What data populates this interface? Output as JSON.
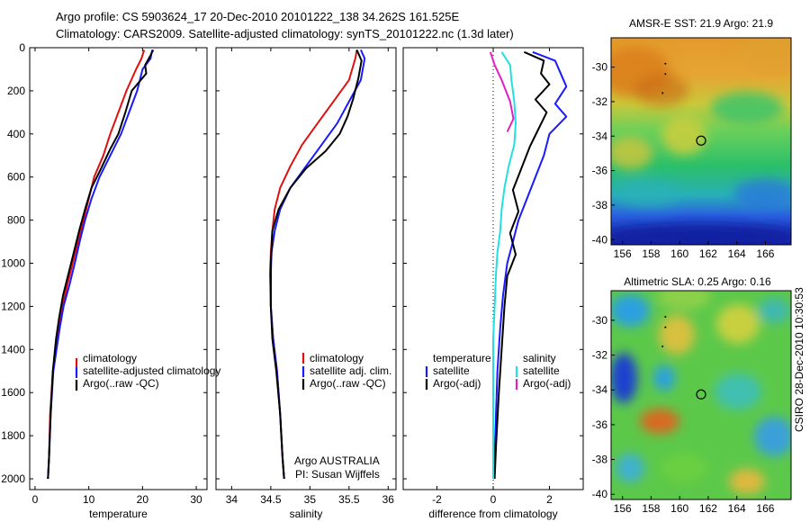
{
  "header": {
    "line1": "Argo profile: CS 5903624_17 20-Dec-2010 20101222_138 34.262S 161.525E",
    "line2": "Climatology: CARS2009. Satellite-adjusted climatology: synTS_20101222.nc (1.3d later)"
  },
  "side_label": "CSIRO 28-Dec-2010 10:30:53",
  "colors": {
    "climatology": "#e01010",
    "satellite": "#1a1aff",
    "argo": "#000000",
    "salinity_sat": "#22e0e0",
    "salinity_argo": "#e020c0"
  },
  "chart_data": [
    {
      "type": "line",
      "id": "temperature",
      "xlabel": "temperature",
      "xlim": [
        -1,
        32
      ],
      "ylim": [
        2050,
        0
      ],
      "xticks": [
        0,
        10,
        20,
        30
      ],
      "yticks": [
        0,
        200,
        400,
        600,
        800,
        1000,
        1200,
        1400,
        1600,
        1800,
        2000
      ],
      "legend": [
        "climatology",
        "satellite-adjusted climatology",
        "Argo(..raw -QC)"
      ],
      "series": [
        {
          "name": "climatology",
          "color": "#e01010",
          "x": [
            20.3,
            19.8,
            18.8,
            17.0,
            15.5,
            14.0,
            12.7,
            11.0,
            10.0,
            9.0,
            8.0,
            7.0,
            6.0,
            5.1,
            4.4,
            3.9,
            3.3,
            2.8,
            2.6,
            2.4
          ],
          "y": [
            10,
            50,
            100,
            200,
            300,
            400,
            500,
            600,
            700,
            800,
            900,
            1000,
            1100,
            1200,
            1300,
            1400,
            1500,
            1700,
            1900,
            2000
          ]
        },
        {
          "name": "satellite-adjusted climatology",
          "color": "#1a1aff",
          "x": [
            21.8,
            21.5,
            20.0,
            19.0,
            17.5,
            16.0,
            14.0,
            12.0,
            10.5,
            9.3,
            8.3,
            7.4,
            6.4,
            5.3,
            4.6,
            4.0,
            3.4,
            2.9,
            2.6,
            2.4
          ],
          "y": [
            10,
            50,
            100,
            200,
            300,
            400,
            500,
            600,
            700,
            800,
            900,
            1000,
            1100,
            1200,
            1300,
            1400,
            1500,
            1700,
            1900,
            2000
          ]
        },
        {
          "name": "Argo(..raw -QC)",
          "color": "#000000",
          "x": [
            22.0,
            21.4,
            20.5,
            20.7,
            18.0,
            16.8,
            15.5,
            14.0,
            12.3,
            10.5,
            9.3,
            8.2,
            7.2,
            6.2,
            5.2,
            4.5,
            3.9,
            3.3,
            2.9,
            2.6,
            2.4
          ],
          "y": [
            10,
            40,
            80,
            120,
            200,
            300,
            400,
            470,
            560,
            650,
            750,
            850,
            950,
            1050,
            1150,
            1250,
            1350,
            1500,
            1700,
            1900,
            2000
          ]
        }
      ]
    },
    {
      "type": "line",
      "id": "salinity",
      "xlabel": "salinity",
      "xlim": [
        33.8,
        36.1
      ],
      "ylim": [
        2050,
        0
      ],
      "xticks": [
        34,
        34.5,
        35,
        35.5,
        36
      ],
      "yticks": [],
      "legend": [
        "climatology",
        "satellite adj. clim.",
        "Argo(..raw -QC)"
      ],
      "note_lines": [
        "Argo AUSTRALIA",
        "PI: Susan Wijffels"
      ],
      "series": [
        {
          "name": "climatology",
          "color": "#e01010",
          "x": [
            35.6,
            35.58,
            35.5,
            35.3,
            35.1,
            34.9,
            34.75,
            34.62,
            34.55,
            34.52,
            34.5,
            34.49,
            34.5,
            34.53,
            34.58,
            34.62,
            34.65,
            34.67
          ],
          "y": [
            10,
            50,
            150,
            250,
            350,
            450,
            550,
            650,
            750,
            850,
            950,
            1050,
            1200,
            1350,
            1500,
            1700,
            1900,
            2000
          ]
        },
        {
          "name": "satellite adj. clim.",
          "color": "#1a1aff",
          "x": [
            35.65,
            35.7,
            35.65,
            35.5,
            35.35,
            35.15,
            34.95,
            34.75,
            34.62,
            34.55,
            34.51,
            34.5,
            34.5,
            34.53,
            34.58,
            34.62,
            34.65,
            34.67
          ],
          "y": [
            10,
            50,
            150,
            250,
            350,
            450,
            550,
            650,
            750,
            850,
            950,
            1050,
            1200,
            1350,
            1500,
            1700,
            1900,
            2000
          ]
        },
        {
          "name": "Argo(..raw -QC)",
          "color": "#000000",
          "x": [
            35.6,
            35.66,
            35.62,
            35.55,
            35.48,
            35.38,
            35.2,
            34.95,
            34.75,
            34.6,
            34.52,
            34.5,
            34.5,
            34.52,
            34.57,
            34.62,
            34.65,
            34.67
          ],
          "y": [
            10,
            60,
            140,
            240,
            320,
            400,
            480,
            560,
            650,
            750,
            850,
            1000,
            1200,
            1350,
            1500,
            1700,
            1900,
            2000
          ]
        }
      ]
    },
    {
      "type": "line",
      "id": "difference",
      "xlabel": "difference from climatology",
      "xlim": [
        -3.2,
        3.2
      ],
      "ylim": [
        2050,
        0
      ],
      "xticks": [
        -2,
        0,
        2
      ],
      "yticks": [],
      "legend_temperature": [
        "temperature",
        "satellite",
        "Argo(-adj)"
      ],
      "legend_salinity": [
        "salinity",
        "satellite",
        "Argo(-adj)"
      ],
      "series": [
        {
          "name": "temperature satellite",
          "color": "#1a1aff",
          "x": [
            1.4,
            2.2,
            2.4,
            2.6,
            2.2,
            2.6,
            2.0,
            1.8,
            1.5,
            1.2,
            0.9,
            0.7,
            0.5,
            0.35,
            0.25,
            0.15,
            0.1,
            0.05,
            0.02
          ],
          "y": [
            20,
            60,
            120,
            180,
            260,
            320,
            400,
            500,
            600,
            700,
            800,
            900,
            1000,
            1150,
            1300,
            1500,
            1700,
            1900,
            2000
          ]
        },
        {
          "name": "temperature Argo(-adj)",
          "color": "#000000",
          "x": [
            1.1,
            1.8,
            1.7,
            2.0,
            1.5,
            1.9,
            1.6,
            1.3,
            1.0,
            0.7,
            0.9,
            0.6,
            0.8,
            0.5,
            0.4,
            0.3,
            0.2,
            0.1,
            0.05
          ],
          "y": [
            20,
            60,
            120,
            170,
            240,
            300,
            380,
            460,
            560,
            660,
            760,
            860,
            960,
            1060,
            1200,
            1400,
            1600,
            1850,
            2000
          ]
        },
        {
          "name": "salinity satellite",
          "color": "#22e0e0",
          "x": [
            0.3,
            0.6,
            0.65,
            0.75,
            0.8,
            0.75,
            0.55,
            0.4,
            0.3,
            0.25,
            0.15,
            0.1,
            0.05,
            0.0,
            0.0,
            0.0,
            0.0,
            0.0
          ],
          "y": [
            20,
            80,
            150,
            250,
            350,
            450,
            550,
            650,
            750,
            850,
            950,
            1050,
            1200,
            1350,
            1500,
            1700,
            1900,
            2000
          ]
        },
        {
          "name": "salinity Argo(-adj)",
          "color": "#e020c0",
          "x": [
            -0.1,
            0.05,
            0.3,
            0.6,
            0.72,
            0.5
          ],
          "y": [
            20,
            80,
            150,
            250,
            330,
            390
          ]
        }
      ]
    }
  ],
  "maps": [
    {
      "title": "AMSR-E SST: 21.9 Argo: 21.9",
      "xticks": [
        156,
        158,
        160,
        162,
        164,
        166
      ],
      "yticks": [
        -30,
        -32,
        -34,
        -36,
        -38,
        -40
      ],
      "xlim": [
        155.2,
        167.8
      ],
      "ylim": [
        -40.3,
        -28.3
      ],
      "marker": [
        161.5,
        -34.26
      ]
    },
    {
      "title": "Altimetric SLA: 0.25 Argo: 0.16",
      "xticks": [
        156,
        158,
        160,
        162,
        164,
        166
      ],
      "yticks": [
        -30,
        -32,
        -34,
        -36,
        -38,
        -40
      ],
      "xlim": [
        155.2,
        167.8
      ],
      "ylim": [
        -40.3,
        -28.3
      ],
      "marker": [
        161.5,
        -34.26
      ]
    }
  ]
}
